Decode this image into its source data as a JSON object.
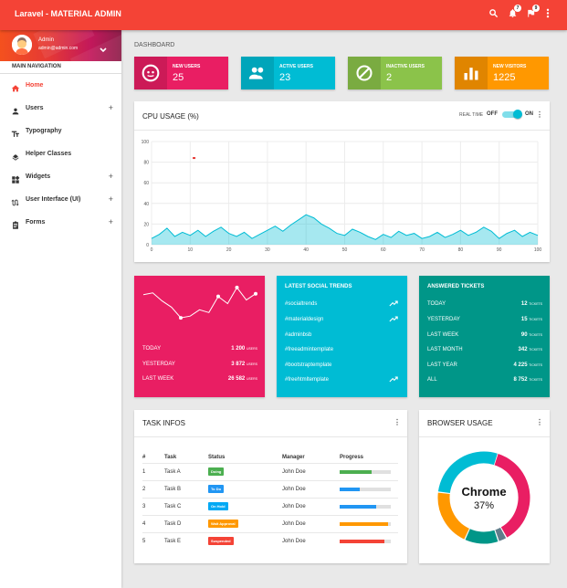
{
  "app": {
    "title": "Laravel - MATERIAL ADMIN",
    "accent": "#f44336"
  },
  "topbar": {
    "notif_count": "7",
    "task_count": "9"
  },
  "user": {
    "name": "Admin",
    "email": "admin@admin.com"
  },
  "nav": {
    "header": "MAIN NAVIGATION",
    "items": [
      {
        "label": "Home",
        "icon": "home-icon",
        "expandable": false,
        "active": true
      },
      {
        "label": "Users",
        "icon": "person-icon",
        "expandable": true,
        "active": false
      },
      {
        "label": "Typography",
        "icon": "text-fields-icon",
        "expandable": false,
        "active": false
      },
      {
        "label": "Helper Classes",
        "icon": "layers-icon",
        "expandable": false,
        "active": false
      },
      {
        "label": "Widgets",
        "icon": "widgets-icon",
        "expandable": true,
        "active": false
      },
      {
        "label": "User Interface (UI)",
        "icon": "swap-calls-icon",
        "expandable": true,
        "active": false
      },
      {
        "label": "Forms",
        "icon": "assignment-icon",
        "expandable": true,
        "active": false
      }
    ],
    "plus": "+"
  },
  "breadcrumb": "DASHBOARD",
  "infoboxes": [
    {
      "label": "NEW USERS",
      "value": "25",
      "color": "#e91e63",
      "icon": "face-icon"
    },
    {
      "label": "ACTIVE USERS",
      "value": "23",
      "color": "#00bcd4",
      "icon": "people-icon"
    },
    {
      "label": "INACTIVE USERS",
      "value": "2",
      "color": "#8bc34a",
      "icon": "block-icon"
    },
    {
      "label": "NEW VISITORS",
      "value": "1225",
      "color": "#ff9800",
      "icon": "bar-chart-icon"
    }
  ],
  "cpu": {
    "title": "CPU USAGE (%)",
    "realtime_label": "REAL TIME",
    "off_label": "OFF",
    "on_label": "ON",
    "realtime_on": true
  },
  "chart_data": {
    "type": "area",
    "title": "",
    "xlabel": "",
    "ylabel": "",
    "xlim": [
      0,
      100
    ],
    "ylim": [
      0,
      100
    ],
    "x_ticks": [
      0,
      10,
      20,
      30,
      40,
      50,
      60,
      70,
      80,
      90,
      100
    ],
    "y_ticks": [
      0,
      20,
      40,
      60,
      80,
      100
    ],
    "grid": true,
    "x": [
      0,
      2,
      4,
      6,
      8,
      10,
      12,
      14,
      16,
      18,
      20,
      22,
      24,
      26,
      28,
      30,
      32,
      34,
      36,
      38,
      40,
      42,
      44,
      46,
      48,
      50,
      52,
      54,
      56,
      58,
      60,
      62,
      64,
      66,
      68,
      70,
      72,
      74,
      76,
      78,
      80,
      82,
      84,
      86,
      88,
      90,
      92,
      94,
      96,
      98,
      100
    ],
    "series": [
      {
        "values": [
          6,
          10,
          16,
          8,
          12,
          9,
          14,
          8,
          13,
          17,
          11,
          8,
          12,
          6,
          10,
          14,
          18,
          13,
          19,
          24,
          29,
          26,
          20,
          16,
          11,
          9,
          15,
          12,
          8,
          5,
          10,
          7,
          13,
          9,
          11,
          6,
          8,
          12,
          7,
          10,
          14,
          9,
          12,
          17,
          13,
          6,
          11,
          14,
          8,
          12,
          9
        ],
        "color": "#00bcd4"
      }
    ],
    "marker": {
      "x": 11,
      "y": 84,
      "color": "#e53935"
    }
  },
  "sparkline_card": {
    "color": "#e91e63",
    "stats": [
      {
        "label": "TODAY",
        "value": "1 200",
        "unit": "USERS"
      },
      {
        "label": "YESTERDAY",
        "value": "3 872",
        "unit": "USERS"
      },
      {
        "label": "LAST WEEK",
        "value": "26 582",
        "unit": "USERS"
      }
    ],
    "sparkline": [
      62,
      64,
      55,
      48,
      36,
      38,
      45,
      42,
      60,
      52,
      70,
      56,
      63
    ]
  },
  "trends": {
    "title": "LATEST SOCIAL TRENDS",
    "color": "#00bcd4",
    "items": [
      {
        "tag": "#socialtrends",
        "trending": true
      },
      {
        "tag": "#materialdesign",
        "trending": true
      },
      {
        "tag": "#adminbsb",
        "trending": false
      },
      {
        "tag": "#freeadmintemplate",
        "trending": false
      },
      {
        "tag": "#bootstraptemplate",
        "trending": false
      },
      {
        "tag": "#freehtmltemplate",
        "trending": true
      }
    ]
  },
  "tickets": {
    "title": "ANSWERED TICKETS",
    "color": "#009688",
    "unit": "TICKETS",
    "rows": [
      {
        "label": "TODAY",
        "value": "12"
      },
      {
        "label": "YESTERDAY",
        "value": "15"
      },
      {
        "label": "LAST WEEK",
        "value": "90"
      },
      {
        "label": "LAST MONTH",
        "value": "342"
      },
      {
        "label": "LAST YEAR",
        "value": "4 225"
      },
      {
        "label": "ALL",
        "value": "8 752"
      }
    ]
  },
  "tasks": {
    "title": "TASK INFOS",
    "columns": [
      "#",
      "Task",
      "Status",
      "Manager",
      "Progress"
    ],
    "rows": [
      {
        "num": "1",
        "task": "Task A",
        "status": "Doing",
        "status_color": "#4caf50",
        "manager": "John Doe",
        "progress": 0.62,
        "bar_color": "#4caf50"
      },
      {
        "num": "2",
        "task": "Task B",
        "status": "To Do",
        "status_color": "#2196f3",
        "manager": "John Doe",
        "progress": 0.4,
        "bar_color": "#2196f3"
      },
      {
        "num": "3",
        "task": "Task C",
        "status": "On Hold",
        "status_color": "#03a9f4",
        "manager": "John Doe",
        "progress": 0.72,
        "bar_color": "#2196f3"
      },
      {
        "num": "4",
        "task": "Task D",
        "status": "Wait Approval",
        "status_color": "#ff9800",
        "manager": "John Doe",
        "progress": 0.95,
        "bar_color": "#ff9800"
      },
      {
        "num": "5",
        "task": "Task E",
        "status": "Suspended",
        "status_color": "#f44336",
        "manager": "John Doe",
        "progress": 0.88,
        "bar_color": "#f44336"
      }
    ]
  },
  "browser": {
    "title": "BROWSER USAGE",
    "label": "Chrome",
    "percent": "37%",
    "segments": [
      {
        "value": 37,
        "color": "#e91e63"
      },
      {
        "value": 3,
        "color": "#607d8b"
      },
      {
        "value": 12,
        "color": "#009688"
      },
      {
        "value": 20,
        "color": "#ff9800"
      },
      {
        "value": 28,
        "color": "#00bcd4"
      }
    ]
  }
}
